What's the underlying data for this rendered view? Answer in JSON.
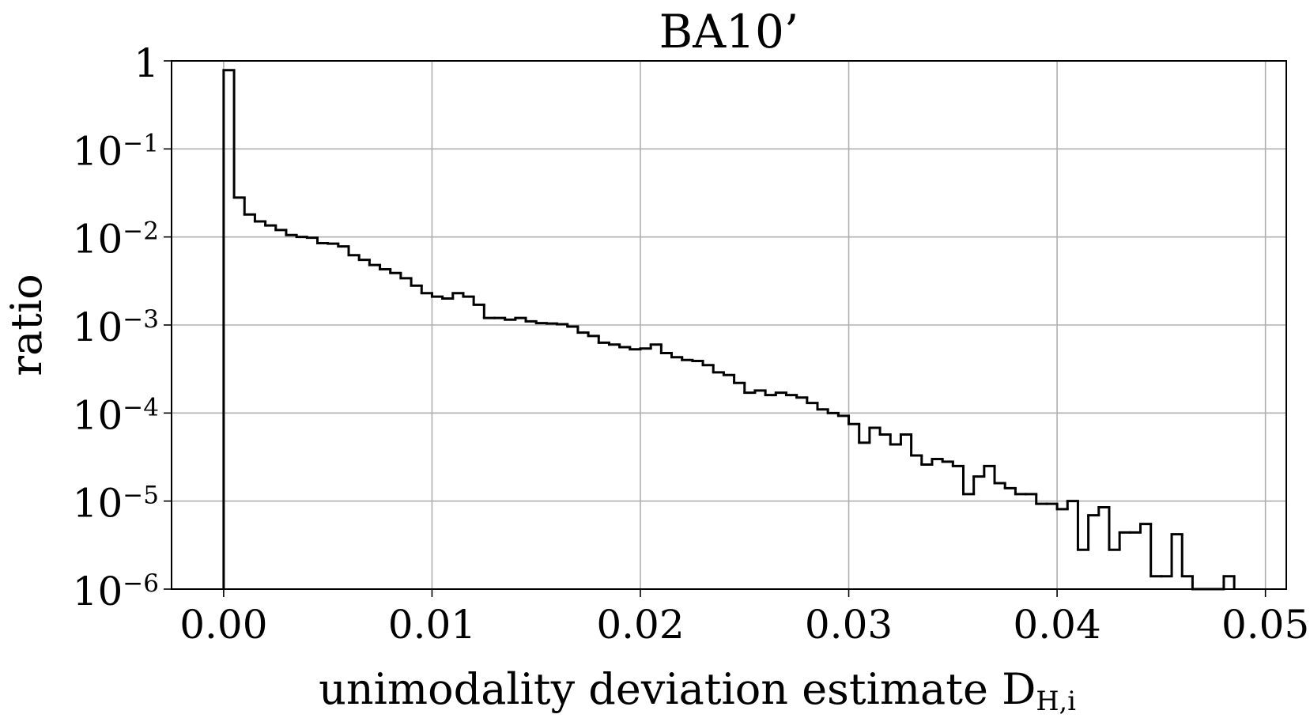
{
  "chart_data": {
    "type": "histogram",
    "title": "BA10’",
    "xlabel": "unimodality deviation estimate D_{H,i}",
    "ylabel": "ratio",
    "bins": [
      0,
      0.0005,
      0.001,
      0.0015,
      0.002,
      0.0025,
      0.003,
      0.0035,
      0.004,
      0.0045,
      0.005,
      0.0055,
      0.006,
      0.0065,
      0.007,
      0.0075,
      0.008,
      0.0085,
      0.009,
      0.0095,
      0.01,
      0.0105,
      0.011,
      0.0115,
      0.012,
      0.0125,
      0.013,
      0.0135,
      0.014,
      0.0145,
      0.015,
      0.0155,
      0.016,
      0.0165,
      0.017,
      0.0175,
      0.018,
      0.0185,
      0.019,
      0.0195,
      0.02,
      0.0205,
      0.021,
      0.0215,
      0.022,
      0.0225,
      0.023,
      0.0235,
      0.024,
      0.0245,
      0.025,
      0.0255,
      0.026,
      0.0265,
      0.027,
      0.0275,
      0.028,
      0.0285,
      0.029,
      0.0295,
      0.03,
      0.0305,
      0.031,
      0.0315,
      0.032,
      0.0325,
      0.033,
      0.0335,
      0.034,
      0.0345,
      0.035,
      0.0355,
      0.036,
      0.0365,
      0.037,
      0.0375,
      0.038,
      0.0385,
      0.039,
      0.0395,
      0.04,
      0.0405,
      0.041,
      0.0415,
      0.042,
      0.0425,
      0.043,
      0.0435,
      0.044,
      0.0445,
      0.045,
      0.0455,
      0.046,
      0.0465,
      0.047,
      0.0475,
      0.048,
      0.0485
    ],
    "values": [
      0.785,
      0.028,
      0.018,
      0.015,
      0.0135,
      0.012,
      0.0105,
      0.01,
      0.0098,
      0.0085,
      0.0084,
      0.0078,
      0.0062,
      0.0055,
      0.0048,
      0.0043,
      0.0039,
      0.0034,
      0.0028,
      0.0023,
      0.0021,
      0.002,
      0.0023,
      0.0021,
      0.0017,
      0.0012,
      0.0012,
      0.00115,
      0.0012,
      0.0011,
      0.00105,
      0.00104,
      0.00102,
      0.00096,
      0.00082,
      0.00075,
      0.00063,
      0.0006,
      0.00056,
      0.00053,
      0.00054,
      0.0006,
      0.00048,
      0.00043,
      0.0004,
      0.00039,
      0.00035,
      0.00029,
      0.00027,
      0.00022,
      0.00017,
      0.00018,
      0.00016,
      0.00017,
      0.00016,
      0.00015,
      0.00013,
      0.00011,
      0.0001,
      9.3e-05,
      7.5e-05,
      4.6e-05,
      6.8e-05,
      5.7e-05,
      4.4e-05,
      5.7e-05,
      3.3e-05,
      2.6e-05,
      3e-05,
      2.8e-05,
      2.5e-05,
      1.2e-05,
      1.9e-05,
      2.5e-05,
      1.6e-05,
      1.4e-05,
      1.2e-05,
      1.2e-05,
      9.3e-06,
      9.3e-06,
      8.1e-06,
      1e-05,
      2.8e-06,
      6.9e-06,
      8.5e-06,
      2.8e-06,
      4.4e-06,
      4.4e-06,
      5.5e-06,
      1.4e-06,
      1.4e-06,
      4.2e-06,
      1.4e-06,
      0,
      0,
      0,
      1.4e-06
    ],
    "color": "#000000",
    "log_y": true,
    "grid": true,
    "xlim": [
      -0.0025,
      0.051
    ],
    "xticks": [
      {
        "value": 0,
        "label": "0.00"
      },
      {
        "value": 0.01,
        "label": "0.01"
      },
      {
        "value": 0.02,
        "label": "0.02"
      },
      {
        "value": 0.03,
        "label": "0.03"
      },
      {
        "value": 0.04,
        "label": "0.04"
      },
      {
        "value": 0.05,
        "label": "0.05"
      }
    ],
    "ylim": [
      1e-06,
      1
    ],
    "yticks": [
      {
        "value": 1e-06,
        "label": "10^{−6}"
      },
      {
        "value": 1e-05,
        "label": "10^{−5}"
      },
      {
        "value": 0.0001,
        "label": "10^{−4}"
      },
      {
        "value": 0.001,
        "label": "10^{−3}"
      },
      {
        "value": 0.01,
        "label": "10^{−2}"
      },
      {
        "value": 0.1,
        "label": "10^{−1}"
      },
      1
    ]
  }
}
